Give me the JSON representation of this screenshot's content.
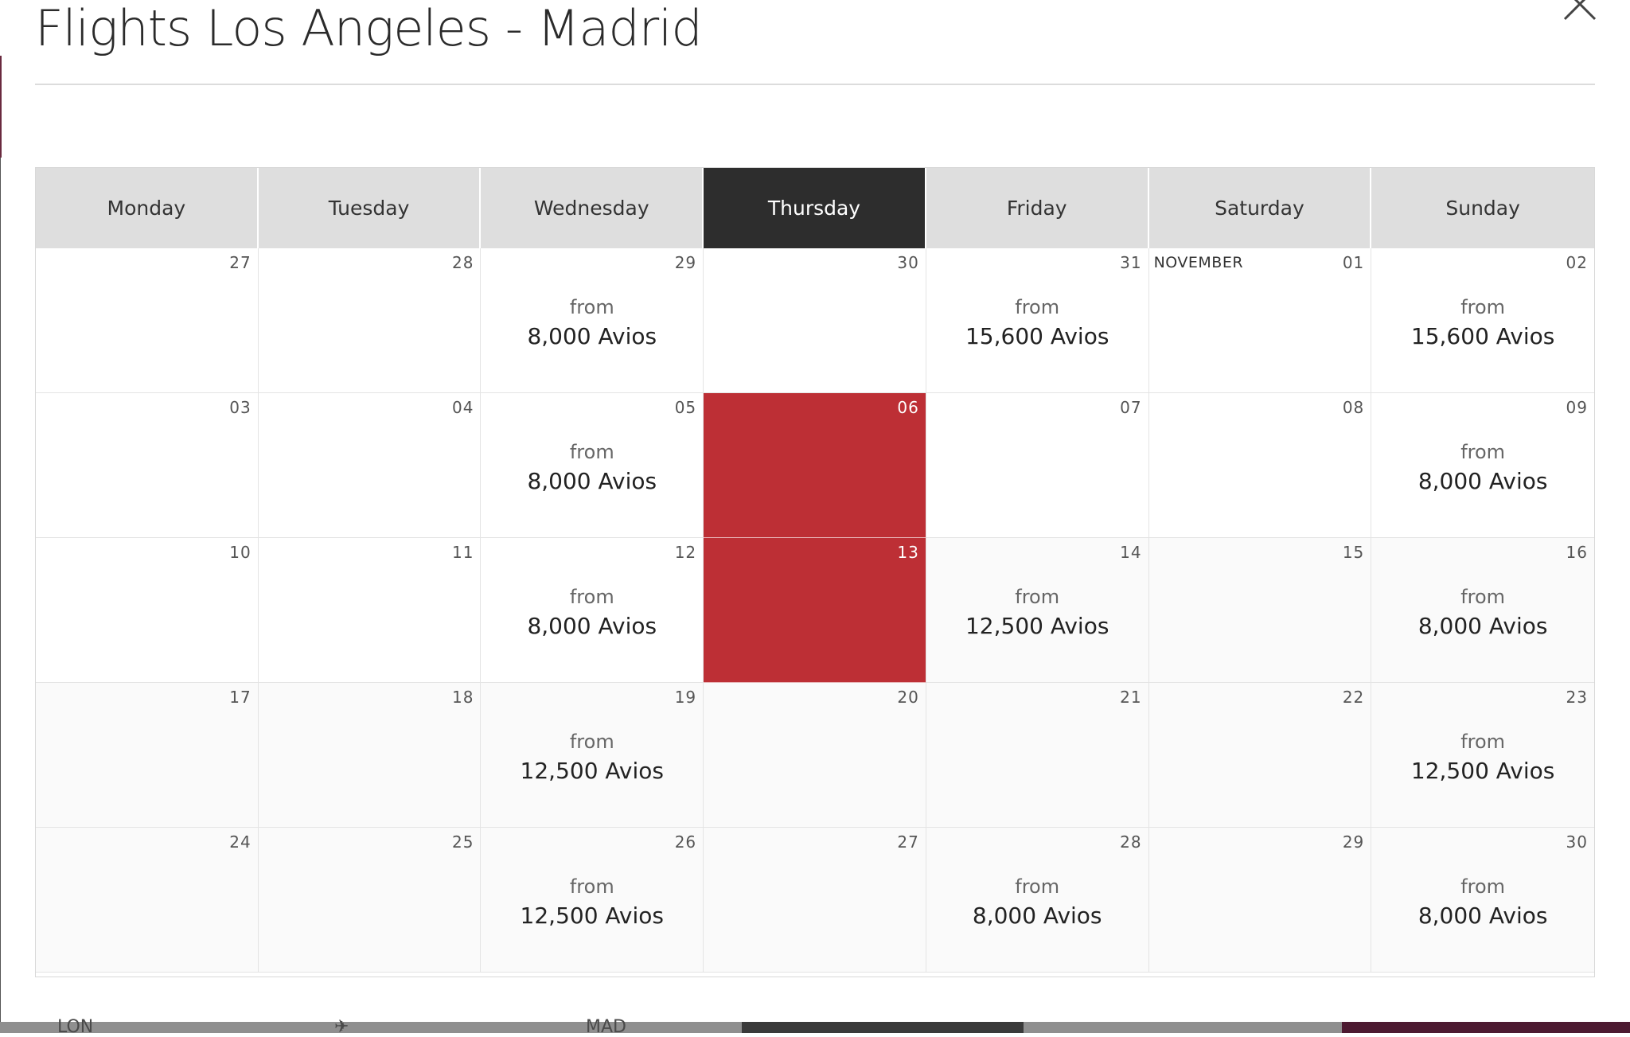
{
  "modal": {
    "title": "Flights Los Angeles - Madrid",
    "close_icon": "close-icon"
  },
  "calendar": {
    "weekdays": [
      "Monday",
      "Tuesday",
      "Wednesday",
      "Thursday",
      "Friday",
      "Saturday",
      "Sunday"
    ],
    "active_weekday": "Thursday",
    "weeks": [
      [
        {
          "day": "27",
          "past": false
        },
        {
          "day": "28",
          "past": false
        },
        {
          "day": "29",
          "from": "from",
          "price": "8,000 Avios",
          "past": false
        },
        {
          "day": "30",
          "past": false
        },
        {
          "day": "31",
          "from": "from",
          "price": "15,600 Avios",
          "past": false
        },
        {
          "day": "01",
          "month": "NOVEMBER",
          "past": false
        },
        {
          "day": "02",
          "from": "from",
          "price": "15,600 Avios",
          "past": false
        }
      ],
      [
        {
          "day": "03",
          "past": false
        },
        {
          "day": "04",
          "past": false
        },
        {
          "day": "05",
          "from": "from",
          "price": "8,000 Avios",
          "past": false
        },
        {
          "day": "06",
          "selected": true
        },
        {
          "day": "07",
          "past": false
        },
        {
          "day": "08",
          "past": false
        },
        {
          "day": "09",
          "from": "from",
          "price": "8,000 Avios",
          "past": false
        }
      ],
      [
        {
          "day": "10",
          "past": false
        },
        {
          "day": "11",
          "past": false
        },
        {
          "day": "12",
          "from": "from",
          "price": "8,000 Avios",
          "past": false
        },
        {
          "day": "13",
          "selected": true
        },
        {
          "day": "14",
          "from": "from",
          "price": "12,500 Avios",
          "past": true
        },
        {
          "day": "15",
          "past": true
        },
        {
          "day": "16",
          "from": "from",
          "price": "8,000 Avios",
          "past": true
        }
      ],
      [
        {
          "day": "17",
          "past": true
        },
        {
          "day": "18",
          "past": true
        },
        {
          "day": "19",
          "from": "from",
          "price": "12,500 Avios",
          "past": true
        },
        {
          "day": "20",
          "past": true
        },
        {
          "day": "21",
          "past": true
        },
        {
          "day": "22",
          "past": true
        },
        {
          "day": "23",
          "from": "from",
          "price": "12,500 Avios",
          "past": true
        }
      ],
      [
        {
          "day": "24",
          "past": true
        },
        {
          "day": "25",
          "past": true
        },
        {
          "day": "26",
          "from": "from",
          "price": "12,500 Avios",
          "past": true
        },
        {
          "day": "27",
          "past": true
        },
        {
          "day": "28",
          "from": "from",
          "price": "8,000 Avios",
          "past": true
        },
        {
          "day": "29",
          "past": true
        },
        {
          "day": "30",
          "from": "from",
          "price": "8,000 Avios",
          "past": true
        }
      ]
    ]
  },
  "background_bar": {
    "origin": "LON",
    "destination": "MAD",
    "plane_icon": "plane-icon"
  },
  "colors": {
    "selected_day": "#bd2f35",
    "active_header": "#2d2d2d",
    "header_bg": "#dedede",
    "brand_dark": "#4d1a31"
  }
}
